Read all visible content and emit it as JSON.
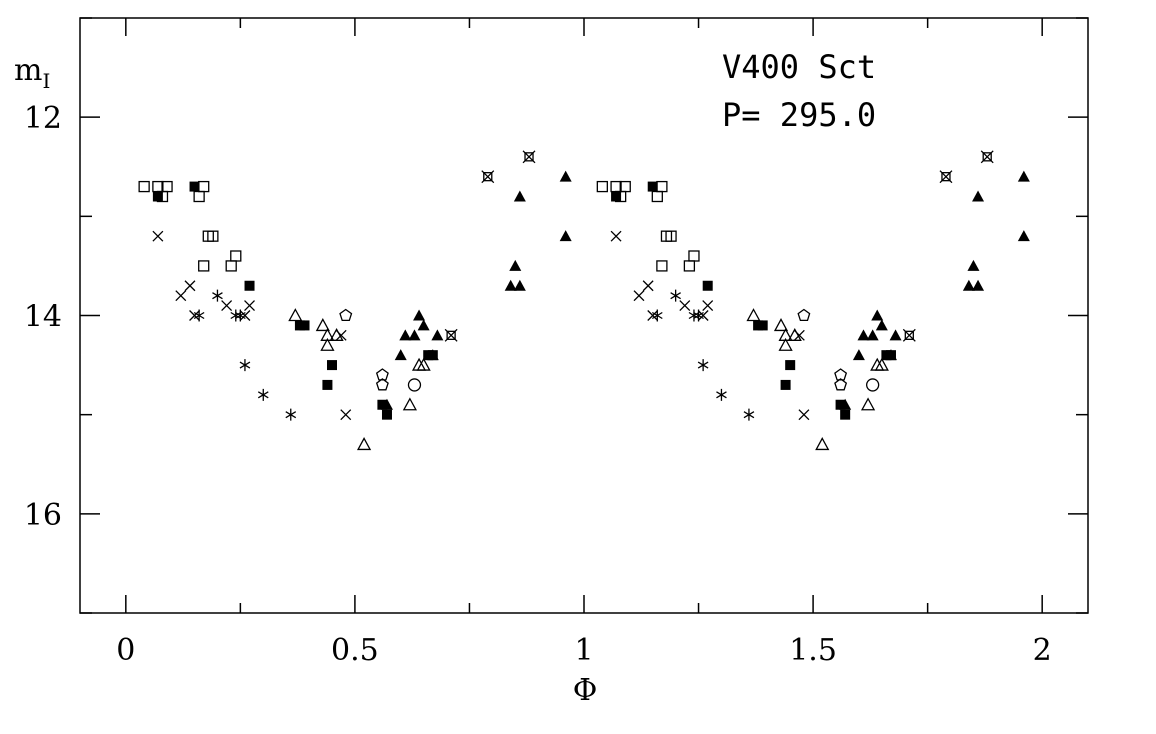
{
  "chart_data": {
    "type": "scatter",
    "title": "",
    "annotations": [
      "V400 Sct",
      "P= 295.0"
    ],
    "xlabel": "Φ",
    "ylabel": "m",
    "ylabel_sub": "I",
    "xlim": [
      -0.1,
      2.1
    ],
    "ylim": [
      17.0,
      11.0
    ],
    "y_inverted": true,
    "grid": false,
    "x_ticks": [
      {
        "value": 0,
        "label": "0"
      },
      {
        "value": 0.5,
        "label": "0.5"
      },
      {
        "value": 1,
        "label": "1"
      },
      {
        "value": 1.5,
        "label": "1.5"
      },
      {
        "value": 2,
        "label": "2"
      }
    ],
    "y_ticks": [
      {
        "value": 12,
        "label": "12"
      },
      {
        "value": 14,
        "label": "14"
      },
      {
        "value": 16,
        "label": "16"
      }
    ],
    "series": [
      {
        "marker": "open-square",
        "points": [
          [
            0.04,
            12.7
          ],
          [
            0.07,
            12.7
          ],
          [
            0.08,
            12.8
          ],
          [
            0.09,
            12.7
          ],
          [
            0.16,
            12.8
          ],
          [
            0.17,
            12.7
          ],
          [
            0.18,
            13.2
          ],
          [
            0.19,
            13.2
          ],
          [
            0.17,
            13.5
          ],
          [
            0.23,
            13.5
          ],
          [
            0.24,
            13.4
          ]
        ]
      },
      {
        "marker": "filled-square",
        "points": [
          [
            0.07,
            12.8
          ],
          [
            0.15,
            12.7
          ],
          [
            0.27,
            13.7
          ],
          [
            0.38,
            14.1
          ],
          [
            0.39,
            14.1
          ],
          [
            0.44,
            14.7
          ],
          [
            0.45,
            14.5
          ],
          [
            0.56,
            14.9
          ],
          [
            0.57,
            15.0
          ],
          [
            0.66,
            14.4
          ],
          [
            0.67,
            14.4
          ]
        ]
      },
      {
        "marker": "cross",
        "points": [
          [
            0.07,
            13.2
          ],
          [
            0.12,
            13.8
          ],
          [
            0.14,
            13.7
          ],
          [
            0.15,
            14.0
          ],
          [
            0.22,
            13.9
          ],
          [
            0.26,
            14.0
          ],
          [
            0.27,
            13.9
          ],
          [
            0.47,
            14.2
          ],
          [
            0.48,
            15.0
          ]
        ]
      },
      {
        "marker": "asterisk",
        "points": [
          [
            0.16,
            14.0
          ],
          [
            0.2,
            13.8
          ],
          [
            0.24,
            14.0
          ],
          [
            0.25,
            14.0
          ],
          [
            0.26,
            14.5
          ],
          [
            0.3,
            14.8
          ],
          [
            0.36,
            15.0
          ]
        ]
      },
      {
        "marker": "open-triangle",
        "points": [
          [
            0.37,
            14.0
          ],
          [
            0.43,
            14.1
          ],
          [
            0.44,
            14.2
          ],
          [
            0.44,
            14.3
          ],
          [
            0.46,
            14.2
          ],
          [
            0.52,
            15.3
          ],
          [
            0.62,
            14.9
          ],
          [
            0.64,
            14.5
          ],
          [
            0.65,
            14.5
          ]
        ]
      },
      {
        "marker": "open-pentagon",
        "points": [
          [
            0.48,
            14.0
          ],
          [
            0.56,
            14.6
          ],
          [
            0.56,
            14.7
          ]
        ]
      },
      {
        "marker": "open-circle",
        "points": [
          [
            0.63,
            14.7
          ]
        ]
      },
      {
        "marker": "filled-triangle",
        "points": [
          [
            0.57,
            14.9
          ],
          [
            0.6,
            14.4
          ],
          [
            0.61,
            14.2
          ],
          [
            0.63,
            14.2
          ],
          [
            0.64,
            14.0
          ],
          [
            0.65,
            14.1
          ],
          [
            0.67,
            14.4
          ],
          [
            0.68,
            14.2
          ],
          [
            0.85,
            13.5
          ],
          [
            0.84,
            13.7
          ],
          [
            0.86,
            13.7
          ],
          [
            0.86,
            12.8
          ],
          [
            0.96,
            12.6
          ],
          [
            0.96,
            13.2
          ]
        ]
      },
      {
        "marker": "star-square",
        "points": [
          [
            0.71,
            14.2
          ],
          [
            0.79,
            12.6
          ],
          [
            0.88,
            12.4
          ]
        ]
      }
    ],
    "repeat_phase_offset": 1
  }
}
